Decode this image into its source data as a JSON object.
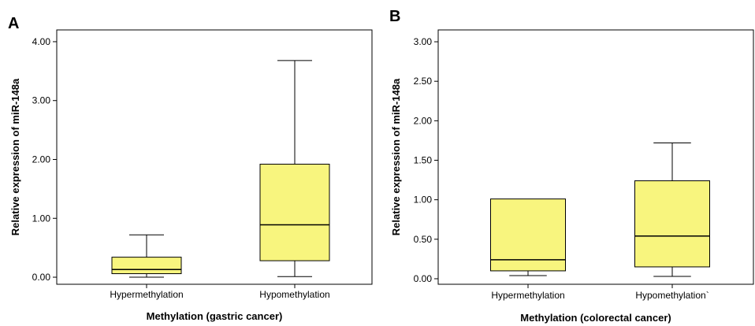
{
  "colors": {
    "box_fill": "#f8f57e",
    "stroke": "#000000",
    "background": "#ffffff"
  },
  "chart_data": [
    {
      "type": "boxplot",
      "panel_letter": "A",
      "xlabel": "Methylation (gastric cancer)",
      "ylabel": "Relative expression of miR-148a",
      "ylim": [
        -0.12,
        4.2
      ],
      "yticks": [
        0,
        1,
        2,
        3,
        4
      ],
      "ytick_labels": [
        "0.00",
        "1.00",
        "2.00",
        "3.00",
        "4.00"
      ],
      "grid": false,
      "categories": [
        "Hypermethylation",
        "Hypomethylation"
      ],
      "boxes": [
        {
          "category": "Hypermethylation",
          "min": 0.0,
          "q1": 0.06,
          "median": 0.13,
          "q3": 0.34,
          "max": 0.72
        },
        {
          "category": "Hypomethylation",
          "min": 0.01,
          "q1": 0.28,
          "median": 0.89,
          "q3": 1.92,
          "max": 3.68
        }
      ]
    },
    {
      "type": "boxplot",
      "panel_letter": "B",
      "xlabel": "Methylation (colorectal cancer)",
      "ylabel": "Relative expression of miR-148a",
      "ylim": [
        -0.07,
        3.15
      ],
      "yticks": [
        0,
        0.5,
        1,
        1.5,
        2,
        2.5,
        3
      ],
      "ytick_labels": [
        "0.00",
        "0.50",
        "1.00",
        "1.50",
        "2.00",
        "2.50",
        "3.00"
      ],
      "grid": false,
      "categories": [
        "Hypermethylation",
        "Hypomethylation`"
      ],
      "boxes": [
        {
          "category": "Hypermethylation",
          "min": 0.04,
          "q1": 0.1,
          "median": 0.24,
          "q3": 1.01,
          "max": 1.01
        },
        {
          "category": "Hypomethylation`",
          "min": 0.03,
          "q1": 0.15,
          "median": 0.54,
          "q3": 1.24,
          "max": 1.72
        }
      ]
    }
  ]
}
